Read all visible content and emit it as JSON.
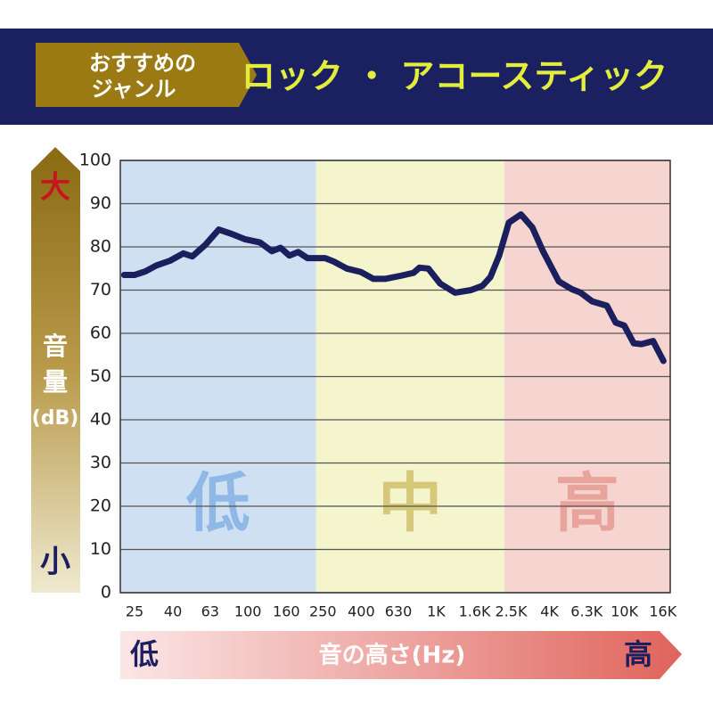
{
  "chart_data": {
    "type": "line",
    "badge": [
      "おすすめの",
      "ジャンル"
    ],
    "title": "ロック ・ アコースティック",
    "ylabel": [
      "音",
      "量",
      "(dB)"
    ],
    "y_high": "大",
    "y_low": "小",
    "xlabel": "音の高さ(Hz)",
    "x_low": "低",
    "x_high": "高",
    "regions": [
      {
        "label": "低",
        "from": 21,
        "to": 230,
        "color": "#cfe0f2",
        "text_color": "#8fb8e6"
      },
      {
        "label": "中",
        "from": 230,
        "to": 2300,
        "color": "#f4f5cc",
        "text_color": "#d6c87a"
      },
      {
        "label": "高",
        "from": 2300,
        "to": 17500,
        "color": "#f6d4d0",
        "text_color": "#e8a39a"
      }
    ],
    "xscale": "log",
    "xlim": [
      21,
      17500
    ],
    "xticks": [
      25,
      40,
      63,
      100,
      160,
      250,
      400,
      630,
      {
        "value": 1000,
        "label": "1K"
      },
      {
        "value": 1600,
        "label": "1.6K"
      },
      {
        "value": 2500,
        "label": "2.5K"
      },
      {
        "value": 4000,
        "label": "4K"
      },
      {
        "value": 6300,
        "label": "6.3K"
      },
      {
        "value": 10000,
        "label": "10K"
      },
      {
        "value": 16000,
        "label": "16K"
      }
    ],
    "ylim": [
      0,
      100
    ],
    "yticks": [
      0,
      10,
      20,
      30,
      40,
      50,
      60,
      70,
      80,
      90,
      100
    ],
    "grid": true,
    "color": "#1b1f5e",
    "x": [
      22,
      25,
      28.5,
      32.6,
      38.6,
      45.4,
      50.6,
      59.5,
      70,
      82,
      96,
      116,
      134,
      149,
      166,
      185,
      207,
      257,
      286,
      335,
      397,
      464,
      535,
      646,
      758,
      815,
      908,
      1050,
      1260,
      1530,
      1760,
      1940,
      2160,
      2430,
      2820,
      3240,
      3690,
      4480,
      5260,
      5850,
      6730,
      8060,
      8980,
      9970,
      11200,
      12300,
      14200,
      16100
    ],
    "values": [
      73.5,
      73.5,
      74.3,
      75.7,
      76.8,
      78.5,
      77.8,
      80.5,
      84,
      83,
      81.8,
      81,
      79,
      79.8,
      78,
      78.8,
      77.4,
      77.4,
      76.6,
      75,
      74.2,
      72.6,
      72.6,
      73.3,
      74,
      75.2,
      75,
      71.5,
      69.4,
      70,
      71,
      73,
      78,
      85.6,
      87.5,
      84.5,
      79,
      72,
      70.2,
      69.4,
      67.4,
      66.4,
      62.5,
      61.8,
      57.7,
      57.5,
      58.2,
      53.6
    ]
  }
}
